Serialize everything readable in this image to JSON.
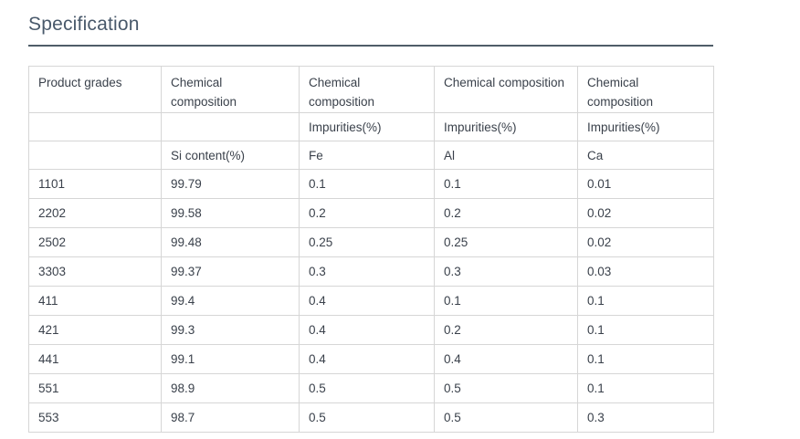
{
  "page": {
    "title": "Specification"
  },
  "colors": {
    "heading": "#49596b",
    "divider": "#4f5d68",
    "table_border": "#d6d6d6",
    "body_text": "#3a414b",
    "background": "#ffffff"
  },
  "table": {
    "header_row1": [
      "Product grades",
      "Chemical composition",
      "Chemical composition",
      "Chemical composition",
      "Chemical composition"
    ],
    "header_row2": [
      "",
      "",
      "Impurities(%)",
      "Impurities(%)",
      "Impurities(%)"
    ],
    "header_row3": [
      "",
      "Si content(%)",
      "Fe",
      "Al",
      "Ca"
    ],
    "rows": [
      [
        "1101",
        "99.79",
        "0.1",
        "0.1",
        "0.01"
      ],
      [
        "2202",
        "99.58",
        "0.2",
        "0.2",
        "0.02"
      ],
      [
        "2502",
        "99.48",
        "0.25",
        "0.25",
        "0.02"
      ],
      [
        "3303",
        "99.37",
        "0.3",
        "0.3",
        "0.03"
      ],
      [
        "411",
        "99.4",
        "0.4",
        "0.1",
        "0.1"
      ],
      [
        "421",
        "99.3",
        "0.4",
        "0.2",
        "0.1"
      ],
      [
        "441",
        "99.1",
        "0.4",
        "0.4",
        "0.1"
      ],
      [
        "551",
        "98.9",
        "0.5",
        "0.5",
        "0.1"
      ],
      [
        "553",
        "98.7",
        "0.5",
        "0.5",
        "0.3"
      ]
    ]
  }
}
